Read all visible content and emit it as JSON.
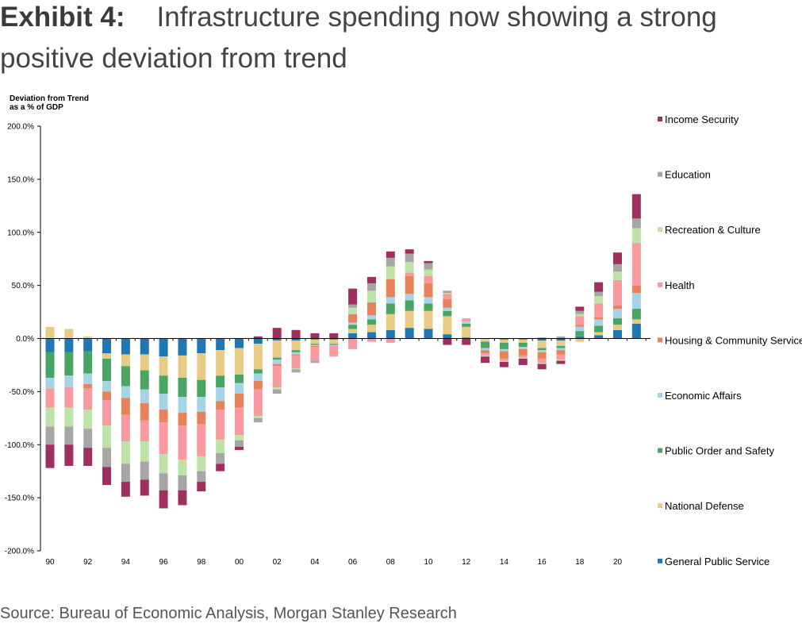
{
  "title": {
    "exhibit": "Exhibit 4:",
    "text": "Infrastructure spending now showing a strong positive deviation from trend"
  },
  "source": "Source: Bureau of Economic Analysis, Morgan Stanley Research",
  "chart_data": {
    "type": "bar",
    "stacked": true,
    "ylabel_line1": "Deviation from Trend",
    "ylabel_line2": "as a % of GDP",
    "ylim": [
      -200,
      200
    ],
    "y_ticks": [
      "200.0%",
      "150.0%",
      "100.0%",
      "50.0%",
      "0.0%",
      "-50.0%",
      "-100.0%",
      "-150.0%",
      "-200.0%"
    ],
    "y_tick_values": [
      200,
      150,
      100,
      50,
      0,
      -50,
      -100,
      -150,
      -200
    ],
    "x_tick_labels": [
      "90",
      "92",
      "94",
      "96",
      "98",
      "00",
      "02",
      "04",
      "06",
      "08",
      "10",
      "12",
      "14",
      "16",
      "18",
      "20"
    ],
    "categories": [
      "1990",
      "1991",
      "1992",
      "1993",
      "1994",
      "1995",
      "1996",
      "1997",
      "1998",
      "1999",
      "2000",
      "2001",
      "2002",
      "2003",
      "2004",
      "2005",
      "2006",
      "2007",
      "2008",
      "2009",
      "2010",
      "2011",
      "2012",
      "2013",
      "2014",
      "2015",
      "2016",
      "2017",
      "2018",
      "2019",
      "2020",
      "2021"
    ],
    "legend_position": "right",
    "series": [
      {
        "name": "General Public Service",
        "color": "#1f77b4",
        "values": [
          -13,
          -13,
          -12,
          -14,
          -15,
          -15,
          -17,
          -16,
          -14,
          -11,
          -9,
          -5,
          -2,
          -2,
          -1,
          -1,
          5,
          6,
          8,
          10,
          9,
          4,
          1,
          0,
          -1,
          -1,
          -2,
          -2,
          2,
          3,
          8,
          14
        ]
      },
      {
        "name": "National Defense",
        "color": "#e8cc85",
        "values": [
          11,
          9,
          2,
          -5,
          -11,
          -15,
          -18,
          -21,
          -25,
          -24,
          -25,
          -24,
          -16,
          -9,
          -4,
          -4,
          4,
          7,
          15,
          16,
          17,
          17,
          10,
          -3,
          -3,
          -3,
          -7,
          -5,
          -3,
          3,
          5,
          4
        ]
      },
      {
        "name": "Public Order and Safety",
        "color": "#4aa564",
        "values": [
          -24,
          -22,
          -21,
          -21,
          -19,
          -18,
          -17,
          -18,
          -16,
          -11,
          -8,
          -4,
          -2,
          -2,
          -1,
          -1,
          4,
          5,
          10,
          10,
          7,
          5,
          3,
          -6,
          -6,
          -4,
          -2,
          -2,
          5,
          6,
          6,
          10
        ]
      },
      {
        "name": "Economic Affairs",
        "color": "#a6d4e6",
        "values": [
          -10,
          -11,
          -10,
          -10,
          -11,
          -13,
          -15,
          -15,
          -14,
          -13,
          -10,
          -7,
          -4,
          -2,
          -1,
          -1,
          2,
          4,
          6,
          6,
          6,
          3,
          2,
          -2,
          -2,
          -2,
          -2,
          -2,
          4,
          6,
          9,
          15
        ]
      },
      {
        "name": "Housing & Community Service",
        "color": "#e8825a",
        "values": [
          0,
          0,
          -4,
          -8,
          -16,
          -16,
          -12,
          -12,
          -12,
          -8,
          -13,
          -8,
          -2,
          -1,
          -1,
          0,
          8,
          12,
          17,
          17,
          13,
          8,
          0,
          -3,
          -7,
          -6,
          -6,
          -4,
          2,
          2,
          3,
          7
        ]
      },
      {
        "name": "Health",
        "color": "#f89aa0",
        "values": [
          -18,
          -19,
          -20,
          -24,
          -25,
          -20,
          -30,
          -32,
          -30,
          -28,
          -26,
          -25,
          -20,
          -12,
          -13,
          -10,
          -10,
          -3,
          -4,
          3,
          7,
          5,
          3,
          -2,
          -2,
          -2,
          -4,
          -5,
          8,
          13,
          24,
          40
        ]
      },
      {
        "name": "Recreation & Culture",
        "color": "#bde3a6",
        "values": [
          -18,
          -18,
          -18,
          -21,
          -21,
          -19,
          -18,
          -15,
          -14,
          -13,
          -5,
          -2,
          -2,
          -1,
          0,
          0,
          6,
          11,
          12,
          10,
          6,
          1,
          0,
          -1,
          -1,
          -1,
          -1,
          -1,
          2,
          7,
          8,
          14
        ]
      },
      {
        "name": "Education",
        "color": "#a6a6a6",
        "values": [
          -17,
          -17,
          -18,
          -18,
          -17,
          -17,
          -16,
          -14,
          -10,
          -10,
          -6,
          -4,
          -4,
          -3,
          -2,
          0,
          3,
          7,
          8,
          8,
          6,
          2,
          0,
          0,
          0,
          0,
          1,
          2,
          3,
          4,
          7,
          9
        ]
      },
      {
        "name": "Income Security",
        "color": "#9e2f5e",
        "values": [
          -22,
          -20,
          -17,
          -17,
          -14,
          -15,
          -17,
          -14,
          -9,
          -7,
          -3,
          2,
          10,
          8,
          5,
          5,
          15,
          6,
          6,
          4,
          2,
          -6,
          -6,
          -6,
          -5,
          -6,
          -5,
          -3,
          4,
          9,
          11,
          23
        ]
      }
    ]
  }
}
